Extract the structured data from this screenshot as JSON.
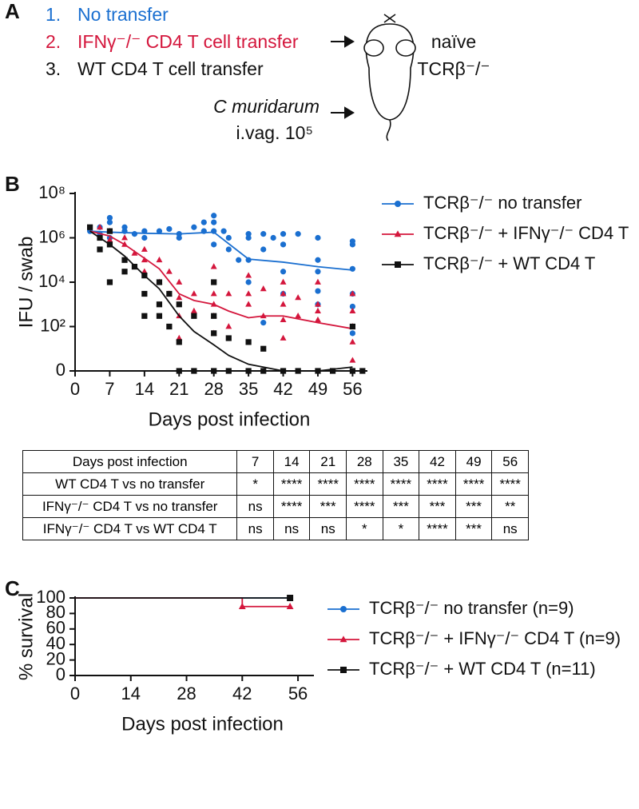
{
  "panel_a": {
    "label": "A",
    "items": [
      {
        "number": "1.",
        "text": "No transfer",
        "color": "#1a6fd0"
      },
      {
        "number": "2.",
        "text": "IFNγ⁻/⁻ CD4 T cell transfer",
        "color": "#d4163c"
      },
      {
        "number": "3.",
        "text": "WT CD4 T cell transfer",
        "color": "#111111"
      }
    ],
    "pathogen": "C muridarum",
    "dose": "i.vag. 10⁵",
    "recipient": [
      "naïve",
      "TCRβ⁻/⁻"
    ]
  },
  "chart_data": [
    {
      "type": "line-scatter",
      "panel": "B",
      "y_label": "IFU / swab",
      "x_label": "Days post infection",
      "yscale": "log",
      "xlim": [
        0,
        59
      ],
      "ylim": [
        0,
        100000000
      ],
      "xticks": [
        0,
        7,
        14,
        21,
        28,
        35,
        42,
        49,
        56
      ],
      "yticks": [
        {
          "value": 100000000,
          "label": "10⁸"
        },
        {
          "value": 1000000,
          "label": "10⁶"
        },
        {
          "value": 10000,
          "label": "10⁴"
        },
        {
          "value": 100,
          "label": "10²"
        },
        0
      ],
      "legend": "top-right",
      "series": [
        {
          "name": "TCRβ⁻/⁻ no transfer",
          "color": "#1a6fd0",
          "marker": "circle",
          "x": [
            3,
            7,
            14,
            21,
            28,
            35,
            42,
            49,
            56
          ],
          "values": [
            2000000,
            1800000,
            1600000,
            1500000,
            1800000,
            110000,
            80000,
            50000,
            35000
          ],
          "points": {
            "x": [
              3,
              5,
              5,
              7,
              7,
              7,
              10,
              10,
              12,
              14,
              14,
              17,
              19,
              21,
              21,
              24,
              26,
              26,
              28,
              28,
              28,
              28,
              30,
              31,
              31,
              33,
              35,
              35,
              35,
              35,
              38,
              38,
              38,
              40,
              42,
              42,
              42,
              42,
              45,
              49,
              49,
              49,
              49,
              49,
              56,
              56,
              56,
              56,
              56,
              56
            ],
            "values": [
              2000000,
              3000000,
              1500000,
              8000000,
              5000000,
              1000000,
              2000000,
              3000000,
              1500000,
              2000000,
              1000000,
              2000000,
              2500000,
              1500000,
              1000000,
              3000000,
              5000000,
              2000000,
              10000000,
              5000000,
              2000000,
              500000,
              2000000,
              1000000,
              300000,
              100000,
              1500000,
              1000000,
              100000,
              10000,
              1500000,
              300000,
              150,
              1000000,
              1500000,
              500000,
              30000,
              3000,
              1500000,
              1000000,
              100000,
              30000,
              4000,
              1000,
              700000,
              500000,
              40000,
              3000,
              800,
              50
            ]
          }
        },
        {
          "name": "TCRβ⁻/⁻ + IFNγ⁻/⁻ CD4 T",
          "color": "#d4163c",
          "marker": "triangle",
          "x": [
            3,
            7,
            10,
            14,
            17,
            21,
            24,
            28,
            31,
            35,
            38,
            42,
            49,
            56
          ],
          "values": [
            2000000,
            1200000,
            500000,
            120000,
            40000,
            3000,
            1500,
            1000,
            500,
            250,
            300,
            300,
            150,
            80
          ],
          "points": {
            "x": [
              5,
              7,
              7,
              10,
              10,
              12,
              14,
              14,
              14,
              17,
              17,
              19,
              19,
              21,
              21,
              21,
              21,
              24,
              24,
              28,
              28,
              28,
              28,
              28,
              31,
              31,
              35,
              35,
              35,
              38,
              38,
              42,
              42,
              42,
              42,
              42,
              45,
              45,
              49,
              49,
              49,
              49,
              56,
              56,
              56,
              56,
              56
            ],
            "values": [
              3000000,
              2000000,
              800000,
              1000000,
              500000,
              200000,
              300000,
              100000,
              30000,
              100000,
              10000,
              30000,
              3000,
              10000,
              2000,
              300,
              30,
              3000,
              500,
              50000,
              3000,
              1000,
              300,
              50,
              3000,
              100,
              20000,
              3000,
              1000,
              5000,
              300,
              10000,
              3000,
              1000,
              200,
              30,
              2000,
              300,
              10000,
              1000,
              500,
              200,
              3000,
              500,
              100,
              20,
              3
            ]
          }
        },
        {
          "name": "TCRβ⁻/⁻ + WT CD4 T",
          "color": "#111111",
          "marker": "square",
          "x": [
            3,
            7,
            10,
            14,
            17,
            21,
            24,
            28,
            31,
            35,
            42,
            49,
            56
          ],
          "values": [
            2000000,
            500000,
            150000,
            20000,
            5000,
            300,
            60,
            15,
            5,
            2,
            0,
            0,
            1.5
          ],
          "points": {
            "x": [
              3,
              5,
              5,
              7,
              7,
              7,
              10,
              10,
              12,
              14,
              14,
              14,
              17,
              17,
              17,
              19,
              19,
              21,
              21,
              21,
              24,
              24,
              28,
              28,
              28,
              28,
              31,
              31,
              35,
              35,
              38,
              38,
              42,
              45,
              49,
              52,
              56,
              56,
              58
            ],
            "values": [
              3000000,
              1000000,
              300000,
              2000000,
              500000,
              10000,
              100000,
              30000,
              50000,
              20000,
              3000,
              300,
              10000,
              300,
              1000,
              3000,
              100,
              1000,
              20,
              0,
              300,
              0,
              10000,
              300,
              50,
              0,
              30,
              0,
              20,
              0,
              10,
              0,
              0,
              0,
              0,
              0,
              100,
              0,
              0
            ]
          }
        }
      ]
    },
    {
      "type": "step",
      "panel": "C",
      "y_label": "% survival",
      "x_label": "Days post infection",
      "xlim": [
        0,
        60
      ],
      "ylim": [
        0,
        100
      ],
      "xticks": [
        0,
        14,
        28,
        42,
        56
      ],
      "yticks": [
        0,
        20,
        40,
        60,
        80,
        100
      ],
      "legend": "top-right",
      "series": [
        {
          "name": "TCRβ⁻/⁻ no transfer (n=9)",
          "color": "#1a6fd0",
          "marker": "circle",
          "x": [
            0,
            54
          ],
          "values": [
            100,
            100
          ]
        },
        {
          "name": "TCRβ⁻/⁻ + IFNγ⁻/⁻ CD4 T (n=9)",
          "color": "#d4163c",
          "marker": "triangle",
          "x": [
            0,
            42,
            54
          ],
          "values": [
            100,
            88.9,
            88.9
          ]
        },
        {
          "name": "TCRβ⁻/⁻ + WT CD4 T (n=11)",
          "color": "#111111",
          "marker": "square",
          "x": [
            0,
            54
          ],
          "values": [
            100,
            100
          ]
        }
      ]
    }
  ],
  "table": {
    "rows": [
      [
        "Days post infection",
        "7",
        "14",
        "21",
        "28",
        "35",
        "42",
        "49",
        "56"
      ],
      [
        "WT CD4 T vs no transfer",
        "*",
        "****",
        "****",
        "****",
        "****",
        "****",
        "****",
        "****"
      ],
      [
        "IFNγ⁻/⁻ CD4 T vs no transfer",
        "ns",
        "****",
        "***",
        "****",
        "***",
        "***",
        "***",
        "**"
      ],
      [
        "IFNγ⁻/⁻ CD4 T vs WT CD4 T",
        "ns",
        "ns",
        "ns",
        "*",
        "*",
        "****",
        "***",
        "ns"
      ]
    ]
  }
}
